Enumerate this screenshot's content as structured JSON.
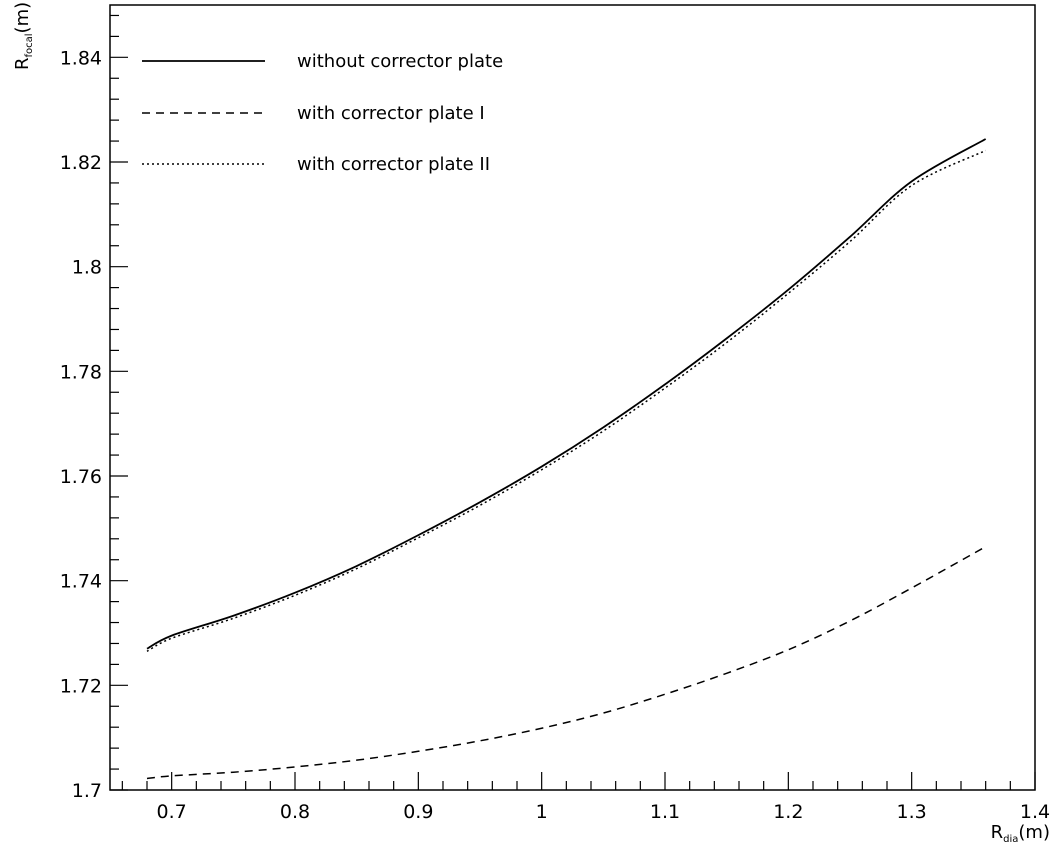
{
  "chart_data": {
    "type": "line",
    "xlabel": {
      "main": "R",
      "sub": "dia",
      "unit": "(m)"
    },
    "ylabel": {
      "main": "R",
      "sub": "focal",
      "unit": "(m)"
    },
    "xlim": [
      0.65,
      1.4
    ],
    "ylim": [
      1.7,
      1.85
    ],
    "x_ticks": [
      0.7,
      0.8,
      0.9,
      1,
      1.1,
      1.2,
      1.3,
      1.4
    ],
    "x_tick_labels": [
      "0.7",
      "0.8",
      "0.9",
      "1",
      "1.1",
      "1.2",
      "1.3",
      "1.4"
    ],
    "y_ticks": [
      1.7,
      1.72,
      1.74,
      1.76,
      1.78,
      1.8,
      1.82,
      1.84
    ],
    "y_tick_labels": [
      "1.7",
      "1.72",
      "1.74",
      "1.76",
      "1.78",
      "1.8",
      "1.82",
      "1.84"
    ],
    "grid": false,
    "legend_position": "top-left",
    "series": [
      {
        "name": "without corrector plate",
        "style": "solid",
        "color": "#000000",
        "x": [
          0.68,
          0.7,
          0.75,
          0.8,
          0.85,
          0.9,
          0.95,
          1.0,
          1.05,
          1.1,
          1.15,
          1.2,
          1.25,
          1.3,
          1.36
        ],
        "y": [
          1.727,
          1.7295,
          1.7333,
          1.7377,
          1.7428,
          1.7487,
          1.755,
          1.7618,
          1.7693,
          1.7775,
          1.7863,
          1.7956,
          1.8057,
          1.8163,
          1.8244
        ]
      },
      {
        "name": "with corrector plate I",
        "style": "dashed",
        "color": "#000000",
        "x": [
          0.68,
          0.7,
          0.75,
          0.8,
          0.85,
          0.9,
          0.95,
          1.0,
          1.05,
          1.1,
          1.15,
          1.2,
          1.25,
          1.3,
          1.36
        ],
        "y": [
          1.7022,
          1.7027,
          1.7034,
          1.7044,
          1.7057,
          1.7074,
          1.7094,
          1.7118,
          1.7147,
          1.7183,
          1.7223,
          1.7268,
          1.7323,
          1.7386,
          1.7465
        ]
      },
      {
        "name": "with corrector plate II",
        "style": "dotted",
        "color": "#000000",
        "x": [
          0.68,
          0.7,
          0.75,
          0.8,
          0.85,
          0.9,
          0.95,
          1.0,
          1.05,
          1.1,
          1.15,
          1.2,
          1.25,
          1.3,
          1.36
        ],
        "y": [
          1.7265,
          1.729,
          1.7328,
          1.7372,
          1.7423,
          1.7482,
          1.7544,
          1.7612,
          1.7686,
          1.7768,
          1.7855,
          1.7949,
          1.8048,
          1.8155,
          1.8222
        ]
      }
    ]
  }
}
